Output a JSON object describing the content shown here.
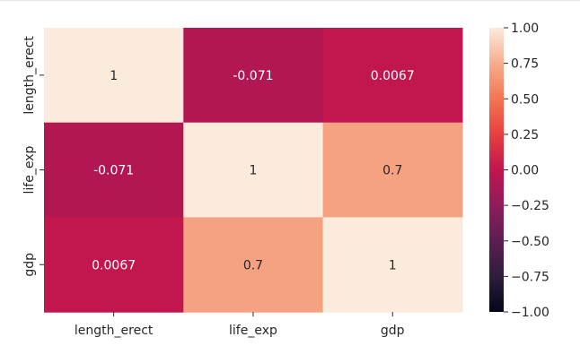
{
  "chart_data": {
    "type": "heatmap",
    "title": "",
    "xlabel": "",
    "ylabel": "",
    "x_labels": [
      "length_erect",
      "life_exp",
      "gdp"
    ],
    "y_labels": [
      "length_erect",
      "life_exp",
      "gdp"
    ],
    "values": [
      [
        1,
        -0.071,
        0.0067
      ],
      [
        -0.071,
        1,
        0.7
      ],
      [
        0.0067,
        0.7,
        1
      ]
    ],
    "annotations": [
      [
        "1",
        "-0.071",
        "0.0067"
      ],
      [
        "-0.071",
        "1",
        "0.7"
      ],
      [
        "0.0067",
        "0.7",
        "1"
      ]
    ],
    "colorbar": {
      "min": -1.0,
      "max": 1.0,
      "colormap": "rocket",
      "ticks": [
        1.0,
        0.75,
        0.5,
        0.25,
        0.0,
        -0.25,
        -0.5,
        -0.75,
        -1.0
      ],
      "tick_labels": [
        "1.00",
        "0.75",
        "0.50",
        "0.25",
        "0.00",
        "−0.25",
        "−0.50",
        "−0.75",
        "−1.00"
      ]
    },
    "colors": {
      "high": "#faebdd",
      "upper_mid": "#f6b48e",
      "mid": "#cb1b4f",
      "low": "#03051a"
    },
    "grid": false
  }
}
